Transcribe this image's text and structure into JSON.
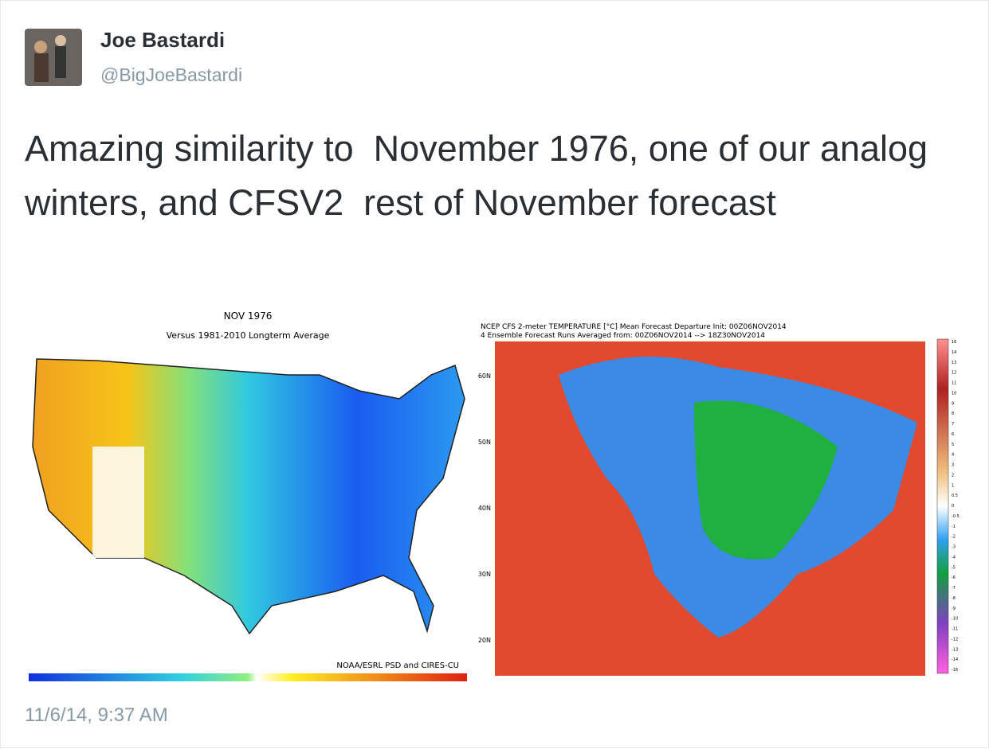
{
  "tweet": {
    "name": "Joe Bastardi",
    "handle": "@BigJoeBastardi",
    "text": "Amazing similarity to  November 1976, one of our analog winters, and CFSV2  rest of November forecast",
    "timestamp": "11/6/14, 9:37 AM"
  },
  "image": {
    "left_map": {
      "title": "NOV 1976",
      "subtitle": "Versus 1981-2010 Longterm Average",
      "credit": "NOAA/ESRL PSD and CIRES-CU"
    },
    "right_map": {
      "title_lines": [
        "NCEP CFS 2-meter TEMPERATURE [°C] Mean Forecast Departure Init: 00Z06NOV2014",
        "4 Ensemble Forecast Runs Averaged from: 00Z06NOV2014 --> 18Z30NOV2014"
      ],
      "latitude_labels": [
        "60N",
        "50N",
        "40N",
        "30N",
        "20N"
      ],
      "colorbar_labels": [
        "16",
        "14",
        "13",
        "12",
        "11",
        "10",
        "9",
        "8",
        "7",
        "6",
        "5",
        "4",
        "3",
        "2",
        "1",
        "0.5",
        "0",
        "-0.5",
        "-1",
        "-2",
        "-3",
        "-4",
        "-5",
        "-6",
        "-7",
        "-8",
        "-9",
        "-10",
        "-11",
        "-12",
        "-13",
        "-14",
        "-16"
      ]
    }
  }
}
